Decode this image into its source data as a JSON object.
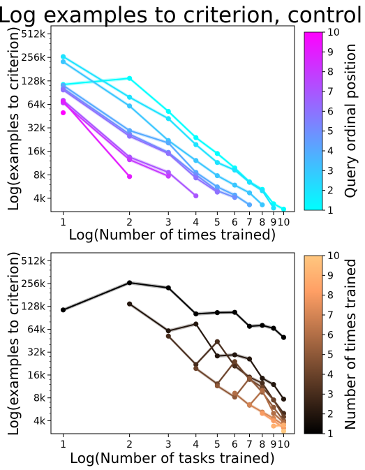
{
  "figure_title": "Log examples to criterion, control",
  "chart_data": [
    {
      "type": "line",
      "xscale": "log",
      "yscale": "log",
      "xlabel": "Log(Number of times trained)",
      "ylabel": "Log(examples to criterion)",
      "xlim": [
        0.88,
        11.2
      ],
      "ylim": [
        2700,
        650000
      ],
      "xticks": [
        1,
        2,
        3,
        4,
        5,
        6,
        7,
        8,
        9,
        10
      ],
      "xtick_labels": [
        "1",
        "2",
        "3",
        "4",
        "5",
        "6",
        "7",
        "8",
        "9",
        "10"
      ],
      "yticks": [
        4000,
        8000,
        16000,
        32000,
        64000,
        128000,
        256000,
        512000
      ],
      "ytick_labels": [
        "4k",
        "8k",
        "16k",
        "32k",
        "64k",
        "128k",
        "256k",
        "512k"
      ],
      "colorbar": {
        "label": "Query ordinal position",
        "min": 1,
        "max": 10,
        "ticks": [
          "1",
          "2",
          "3",
          "4",
          "5",
          "6",
          "7",
          "8",
          "9",
          "10"
        ],
        "colors": [
          "#00ffff",
          "#ff00ff"
        ]
      },
      "series": [
        {
          "color_value": 1,
          "x": [
            1,
            2,
            3,
            4,
            5,
            6,
            7,
            8,
            9,
            10
          ],
          "values": [
            115000,
            138000,
            52000,
            24000,
            15000,
            9800,
            6500,
            5200,
            3400,
            2900
          ]
        },
        {
          "color_value": 2,
          "x": [
            1,
            2,
            3,
            4,
            5,
            6,
            7,
            8,
            9
          ],
          "values": [
            262000,
            79000,
            42000,
            19500,
            11500,
            9200,
            6400,
            5000,
            3000
          ]
        },
        {
          "color_value": 3,
          "x": [
            1,
            2,
            3,
            4,
            5,
            6,
            7,
            8
          ],
          "values": [
            225000,
            61000,
            22000,
            12200,
            7800,
            5900,
            4700,
            3300
          ]
        },
        {
          "color_value": 4,
          "x": [
            1,
            2,
            3,
            4,
            5,
            6,
            7
          ],
          "values": [
            112000,
            29500,
            20500,
            8600,
            5600,
            4400,
            3300
          ]
        },
        {
          "color_value": 5,
          "x": [
            1,
            2,
            3,
            4,
            5,
            6
          ],
          "values": [
            103000,
            26500,
            15500,
            8000,
            5000,
            4100
          ]
        },
        {
          "color_value": 6,
          "x": [
            1,
            2,
            3,
            4,
            5
          ],
          "values": [
            98000,
            25000,
            15000,
            7300,
            4800
          ]
        },
        {
          "color_value": 7,
          "x": [
            1,
            2,
            3,
            4
          ],
          "values": [
            72000,
            13500,
            8600,
            4300
          ]
        },
        {
          "color_value": 8,
          "x": [
            1,
            2,
            3
          ],
          "values": [
            67000,
            12500,
            7700
          ]
        },
        {
          "color_value": 9,
          "x": [
            1,
            2
          ],
          "values": [
            70000,
            7600
          ]
        },
        {
          "color_value": 10,
          "x": [
            1
          ],
          "values": [
            50000
          ]
        }
      ]
    },
    {
      "type": "line",
      "xscale": "log",
      "yscale": "log",
      "xlabel": "Log(Number of tasks trained)",
      "ylabel": "Log(examples to criterion)",
      "xlim": [
        0.88,
        11.2
      ],
      "ylim": [
        2700,
        650000
      ],
      "xticks": [
        1,
        2,
        3,
        4,
        5,
        6,
        7,
        8,
        9,
        10
      ],
      "xtick_labels": [
        "1",
        "2",
        "3",
        "4",
        "5",
        "6",
        "7",
        "8",
        "9",
        "10"
      ],
      "yticks": [
        4000,
        8000,
        16000,
        32000,
        64000,
        128000,
        256000,
        512000
      ],
      "ytick_labels": [
        "4k",
        "8k",
        "16k",
        "32k",
        "64k",
        "128k",
        "256k",
        "512k"
      ],
      "colorbar": {
        "label": "Number of times trained",
        "min": 1,
        "max": 10,
        "ticks": [
          "1",
          "2",
          "3",
          "4",
          "5",
          "6",
          "7",
          "8",
          "9",
          "10"
        ],
        "colors": [
          "#000000",
          "#ffc77f"
        ]
      },
      "series": [
        {
          "color_value": 1,
          "x": [
            1,
            2,
            3,
            4,
            5,
            6,
            7,
            8,
            9,
            10
          ],
          "values": [
            115000,
            262000,
            225000,
            102000,
            106000,
            107000,
            70000,
            72000,
            66000,
            50000
          ]
        },
        {
          "color_value": 2,
          "x": [
            2,
            3,
            4,
            5,
            6,
            7,
            8,
            9,
            10
          ],
          "values": [
            138000,
            61000,
            75000,
            28500,
            29500,
            26000,
            14500,
            12000,
            7700
          ]
        },
        {
          "color_value": 3,
          "x": [
            3,
            4,
            5,
            6,
            7,
            8,
            9,
            10
          ],
          "values": [
            52000,
            22000,
            44000,
            21000,
            15000,
            12500,
            7500,
            5000
          ]
        },
        {
          "color_value": 4,
          "x": [
            4,
            5,
            6,
            7,
            8,
            9,
            10
          ],
          "values": [
            19500,
            12200,
            24000,
            14000,
            11000,
            7500,
            4500
          ]
        },
        {
          "color_value": 5,
          "x": [
            5,
            6,
            7,
            8,
            9,
            10
          ],
          "values": [
            11500,
            8200,
            14500,
            9500,
            6000,
            4000
          ]
        },
        {
          "color_value": 6,
          "x": [
            6,
            7,
            8,
            9,
            10
          ],
          "values": [
            9200,
            6400,
            10000,
            5000,
            3800
          ]
        },
        {
          "color_value": 7,
          "x": [
            7,
            8,
            9,
            10
          ],
          "values": [
            6500,
            5200,
            4300,
            3500
          ]
        },
        {
          "color_value": 8,
          "x": [
            8,
            9,
            10
          ],
          "values": [
            5000,
            4000,
            3200
          ]
        },
        {
          "color_value": 9,
          "x": [
            9,
            10
          ],
          "values": [
            3400,
            3500
          ]
        },
        {
          "color_value": 10,
          "x": [
            10
          ],
          "values": [
            2900
          ]
        }
      ]
    }
  ]
}
